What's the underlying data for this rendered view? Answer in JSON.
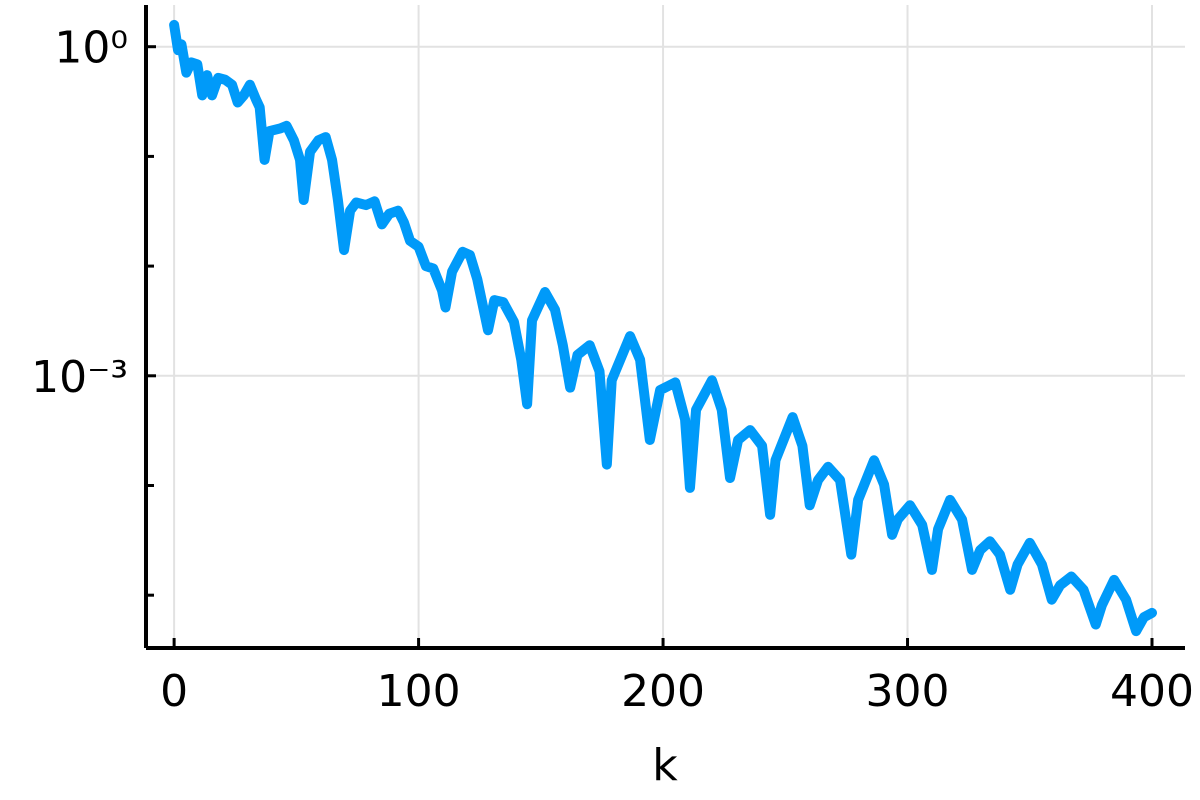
{
  "chart_data": {
    "type": "line",
    "xlabel": "k",
    "log_y": true,
    "grid": true,
    "color": "#009af9",
    "xlim": [
      -11.5,
      413.5
    ],
    "xticks": [
      0,
      100,
      200,
      300,
      400
    ],
    "ylim": [
      3.3e-06,
      2.4
    ],
    "yticks": [
      {
        "value": 1,
        "label": "10⁰"
      },
      {
        "value": 0.001,
        "label": "10⁻³"
      }
    ],
    "yminorticks": [
      0.1,
      0.01,
      0.0001,
      1e-05
    ],
    "x": [
      0,
      1.6,
      3,
      5,
      7,
      9.5,
      11.5,
      13.5,
      15.5,
      18,
      20.9,
      23.7,
      26,
      28.5,
      31,
      33.5,
      35,
      37,
      39,
      43.5,
      46,
      49,
      51.5,
      53,
      55.6,
      59,
      62,
      64.6,
      67,
      69.5,
      72,
      74.5,
      78.5,
      82,
      85,
      88,
      91.6,
      94,
      96.5,
      100,
      103,
      106,
      109.6,
      111,
      113.7,
      118,
      121,
      124,
      128.4,
      131,
      134.6,
      139,
      142,
      144.4,
      146.4,
      151.7,
      155.8,
      159,
      162,
      165,
      170,
      174,
      177,
      179,
      186.5,
      190.6,
      194.6,
      198.8,
      205,
      209,
      211,
      213.5,
      220,
      224,
      227.4,
      230.7,
      235.6,
      240.5,
      243.8,
      246,
      253,
      257,
      260,
      263.4,
      267.5,
      272.4,
      277,
      279.8,
      286.3,
      290.4,
      293.7,
      296,
      301,
      306,
      310,
      312.5,
      317.4,
      322.3,
      326.4,
      329.7,
      333.7,
      337.8,
      342,
      345,
      350,
      355,
      359,
      362.4,
      367,
      372,
      377,
      379.5,
      384.5,
      389.4,
      393.5,
      396.7,
      400
    ],
    "values": [
      1.58,
      0.93,
      1.05,
      0.58,
      0.72,
      0.69,
      0.36,
      0.55,
      0.36,
      0.52,
      0.5,
      0.45,
      0.31,
      0.36,
      0.45,
      0.33,
      0.28,
      0.093,
      0.17,
      0.18,
      0.19,
      0.14,
      0.093,
      0.04,
      0.11,
      0.14,
      0.15,
      0.093,
      0.04,
      0.014,
      0.032,
      0.038,
      0.036,
      0.039,
      0.024,
      0.03,
      0.032,
      0.025,
      0.017,
      0.015,
      0.01,
      0.0095,
      0.006,
      0.0042,
      0.0089,
      0.0135,
      0.0126,
      0.0076,
      0.0026,
      0.0049,
      0.0047,
      0.0031,
      0.0014,
      0.00055,
      0.0032,
      0.0058,
      0.004,
      0.0019,
      0.00078,
      0.00155,
      0.0019,
      0.0011,
      0.000155,
      0.00091,
      0.0023,
      0.0014,
      0.00026,
      0.00074,
      0.00087,
      0.0004,
      9.5e-05,
      0.00049,
      0.00091,
      0.00049,
      0.000117,
      0.00026,
      0.00032,
      0.00023,
      5.4e-05,
      0.00017,
      0.00042,
      0.00023,
      6.6e-05,
      0.000112,
      0.000148,
      0.000112,
      2.34e-05,
      7.4e-05,
      0.00017,
      0.000102,
      3.55e-05,
      4.9e-05,
      6.6e-05,
      4.37e-05,
      1.7e-05,
      4e-05,
      7.4e-05,
      4.9e-05,
      1.7e-05,
      2.57e-05,
      3.1e-05,
      2.34e-05,
      1.12e-05,
      1.9e-05,
      3e-05,
      1.9e-05,
      9.1e-06,
      1.23e-05,
      1.48e-05,
      1.12e-05,
      5.4e-06,
      8.1e-06,
      1.38e-05,
      9.1e-06,
      4.7e-06,
      6.3e-06,
      6.9e-06
    ]
  }
}
